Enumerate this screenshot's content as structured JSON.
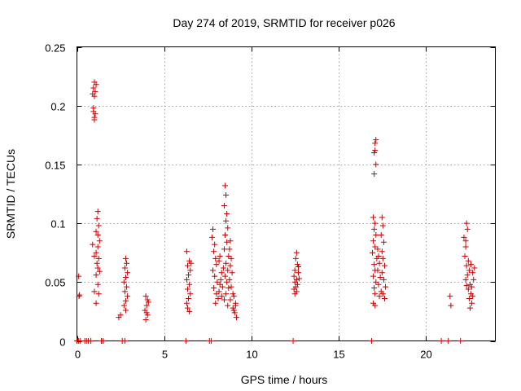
{
  "chart_data": {
    "type": "scatter",
    "title": "Day 274 of 2019, SRMTID for receiver p026",
    "xlabel": "GPS time / hours",
    "ylabel": "SRMTID / TECUs",
    "xlim": [
      0,
      24
    ],
    "ylim": [
      0,
      0.25
    ],
    "xticks": [
      0,
      5,
      10,
      15,
      20
    ],
    "xtick_labels": [
      "0",
      "5",
      "10",
      "15",
      "20"
    ],
    "yticks": [
      0,
      0.05,
      0.1,
      0.15,
      0.2,
      0.25
    ],
    "ytick_labels": [
      "0",
      "0.05",
      "0.1",
      "0.15",
      "0.2",
      "0.25"
    ],
    "grid": true,
    "marker": "+",
    "marker_color": "#cc0000",
    "series": [
      {
        "name": "SRMTID",
        "points": [
          [
            0.1,
            0.055
          ],
          [
            0.12,
            0.038
          ],
          [
            0.15,
            0.039
          ],
          [
            0.0,
            0.0
          ],
          [
            0.1,
            0.0
          ],
          [
            0.2,
            0.0
          ],
          [
            0.45,
            0.0
          ],
          [
            0.55,
            0.0
          ],
          [
            0.65,
            0.0
          ],
          [
            0.8,
            0.0
          ],
          [
            0.9,
            0.21
          ],
          [
            0.95,
            0.215
          ],
          [
            1.0,
            0.22
          ],
          [
            1.05,
            0.212
          ],
          [
            1.1,
            0.218
          ],
          [
            1.0,
            0.208
          ],
          [
            0.95,
            0.195
          ],
          [
            1.0,
            0.19
          ],
          [
            0.95,
            0.198
          ],
          [
            1.05,
            0.193
          ],
          [
            1.0,
            0.188
          ],
          [
            1.2,
            0.11
          ],
          [
            1.15,
            0.104
          ],
          [
            1.25,
            0.098
          ],
          [
            1.1,
            0.093
          ],
          [
            1.2,
            0.09
          ],
          [
            1.3,
            0.085
          ],
          [
            1.2,
            0.08
          ],
          [
            1.1,
            0.075
          ],
          [
            1.0,
            0.072
          ],
          [
            1.25,
            0.07
          ],
          [
            1.15,
            0.066
          ],
          [
            1.2,
            0.062
          ],
          [
            1.3,
            0.059
          ],
          [
            1.1,
            0.056
          ],
          [
            0.9,
            0.082
          ],
          [
            1.2,
            0.048
          ],
          [
            1.0,
            0.042
          ],
          [
            1.1,
            0.032
          ],
          [
            1.25,
            0.04
          ],
          [
            1.4,
            0.0
          ],
          [
            1.5,
            0.0
          ],
          [
            2.4,
            0.02
          ],
          [
            2.6,
            0.0
          ],
          [
            2.75,
            0.0
          ],
          [
            2.5,
            0.022
          ],
          [
            2.8,
            0.07
          ],
          [
            2.85,
            0.066
          ],
          [
            2.75,
            0.062
          ],
          [
            2.9,
            0.058
          ],
          [
            2.8,
            0.054
          ],
          [
            2.7,
            0.05
          ],
          [
            2.85,
            0.046
          ],
          [
            2.75,
            0.042
          ],
          [
            2.9,
            0.038
          ],
          [
            2.8,
            0.034
          ],
          [
            2.7,
            0.03
          ],
          [
            2.8,
            0.026
          ],
          [
            3.95,
            0.038
          ],
          [
            4.05,
            0.035
          ],
          [
            4.0,
            0.03
          ],
          [
            3.9,
            0.026
          ],
          [
            4.05,
            0.022
          ],
          [
            3.95,
            0.018
          ],
          [
            4.0,
            0.024
          ],
          [
            4.1,
            0.033
          ],
          [
            6.3,
            0.076
          ],
          [
            6.45,
            0.068
          ],
          [
            6.35,
            0.064
          ],
          [
            6.5,
            0.06
          ],
          [
            6.4,
            0.056
          ],
          [
            6.3,
            0.052
          ],
          [
            6.45,
            0.048
          ],
          [
            6.35,
            0.044
          ],
          [
            6.5,
            0.04
          ],
          [
            6.4,
            0.036
          ],
          [
            6.3,
            0.032
          ],
          [
            6.35,
            0.028
          ],
          [
            6.45,
            0.025
          ],
          [
            6.55,
            0.066
          ],
          [
            6.25,
            0.0
          ],
          [
            7.6,
            0.0
          ],
          [
            7.7,
            0.0
          ],
          [
            7.75,
            0.088
          ],
          [
            7.8,
            0.095
          ],
          [
            7.9,
            0.082
          ],
          [
            7.85,
            0.076
          ],
          [
            7.95,
            0.07
          ],
          [
            8.0,
            0.065
          ],
          [
            7.8,
            0.06
          ],
          [
            7.9,
            0.055
          ],
          [
            8.05,
            0.05
          ],
          [
            7.85,
            0.045
          ],
          [
            8.0,
            0.04
          ],
          [
            8.1,
            0.036
          ],
          [
            7.95,
            0.032
          ],
          [
            8.15,
            0.068
          ],
          [
            8.2,
            0.072
          ],
          [
            8.3,
            0.058
          ],
          [
            8.25,
            0.052
          ],
          [
            8.35,
            0.046
          ],
          [
            8.15,
            0.042
          ],
          [
            8.3,
            0.038
          ],
          [
            8.4,
            0.062
          ],
          [
            8.2,
            0.048
          ],
          [
            8.5,
            0.132
          ],
          [
            8.55,
            0.124
          ],
          [
            8.45,
            0.115
          ],
          [
            8.6,
            0.108
          ],
          [
            8.55,
            0.102
          ],
          [
            8.65,
            0.096
          ],
          [
            8.5,
            0.09
          ],
          [
            8.6,
            0.084
          ],
          [
            8.45,
            0.078
          ],
          [
            8.7,
            0.072
          ],
          [
            8.55,
            0.066
          ],
          [
            8.65,
            0.06
          ],
          [
            8.5,
            0.055
          ],
          [
            8.6,
            0.05
          ],
          [
            8.7,
            0.045
          ],
          [
            8.55,
            0.04
          ],
          [
            8.45,
            0.035
          ],
          [
            8.65,
            0.03
          ],
          [
            8.8,
            0.085
          ],
          [
            8.75,
            0.078
          ],
          [
            8.85,
            0.07
          ],
          [
            8.8,
            0.064
          ],
          [
            8.9,
            0.058
          ],
          [
            8.75,
            0.052
          ],
          [
            8.85,
            0.046
          ],
          [
            8.95,
            0.04
          ],
          [
            8.8,
            0.035
          ],
          [
            9.0,
            0.038
          ],
          [
            9.1,
            0.032
          ],
          [
            8.95,
            0.028
          ],
          [
            9.05,
            0.024
          ],
          [
            9.15,
            0.02
          ],
          [
            9.0,
            0.026
          ],
          [
            9.1,
            0.03
          ],
          [
            12.4,
            0.0
          ],
          [
            12.45,
            0.055
          ],
          [
            12.5,
            0.05
          ],
          [
            12.55,
            0.046
          ],
          [
            12.5,
            0.06
          ],
          [
            12.6,
            0.052
          ],
          [
            12.65,
            0.065
          ],
          [
            12.55,
            0.07
          ],
          [
            12.6,
            0.075
          ],
          [
            12.7,
            0.058
          ],
          [
            12.45,
            0.044
          ],
          [
            12.5,
            0.04
          ],
          [
            12.65,
            0.048
          ],
          [
            12.75,
            0.053
          ],
          [
            12.6,
            0.042
          ],
          [
            12.7,
            0.063
          ],
          [
            16.9,
            0.0
          ],
          [
            17.1,
            0.168
          ],
          [
            17.15,
            0.171
          ],
          [
            17.05,
            0.16
          ],
          [
            17.1,
            0.162
          ],
          [
            17.15,
            0.15
          ],
          [
            17.05,
            0.142
          ],
          [
            17.0,
            0.105
          ],
          [
            17.1,
            0.1
          ],
          [
            17.05,
            0.095
          ],
          [
            17.15,
            0.09
          ],
          [
            17.0,
            0.085
          ],
          [
            17.1,
            0.08
          ],
          [
            16.95,
            0.075
          ],
          [
            17.2,
            0.07
          ],
          [
            17.05,
            0.065
          ],
          [
            17.1,
            0.06
          ],
          [
            17.0,
            0.055
          ],
          [
            17.15,
            0.05
          ],
          [
            17.05,
            0.045
          ],
          [
            17.1,
            0.04
          ],
          [
            17.0,
            0.032
          ],
          [
            17.1,
            0.03
          ],
          [
            17.25,
            0.078
          ],
          [
            17.3,
            0.072
          ],
          [
            17.35,
            0.066
          ],
          [
            17.25,
            0.06
          ],
          [
            17.4,
            0.054
          ],
          [
            17.3,
            0.048
          ],
          [
            17.45,
            0.042
          ],
          [
            17.35,
            0.038
          ],
          [
            17.5,
            0.105
          ],
          [
            17.55,
            0.098
          ],
          [
            17.45,
            0.09
          ],
          [
            17.6,
            0.084
          ],
          [
            17.5,
            0.076
          ],
          [
            17.55,
            0.07
          ],
          [
            17.65,
            0.064
          ],
          [
            17.5,
            0.058
          ],
          [
            17.6,
            0.052
          ],
          [
            17.7,
            0.046
          ],
          [
            17.55,
            0.04
          ],
          [
            17.65,
            0.036
          ],
          [
            20.9,
            0.0
          ],
          [
            21.3,
            0.0
          ],
          [
            21.4,
            0.038
          ],
          [
            21.45,
            0.03
          ],
          [
            22.0,
            0.0
          ],
          [
            22.2,
            0.088
          ],
          [
            22.3,
            0.085
          ],
          [
            22.35,
            0.1
          ],
          [
            22.4,
            0.095
          ],
          [
            22.3,
            0.08
          ],
          [
            22.25,
            0.072
          ],
          [
            22.45,
            0.068
          ],
          [
            22.35,
            0.064
          ],
          [
            22.5,
            0.06
          ],
          [
            22.4,
            0.056
          ],
          [
            22.3,
            0.052
          ],
          [
            22.55,
            0.048
          ],
          [
            22.45,
            0.044
          ],
          [
            22.6,
            0.04
          ],
          [
            22.5,
            0.036
          ],
          [
            22.65,
            0.032
          ],
          [
            22.55,
            0.028
          ],
          [
            22.6,
            0.065
          ],
          [
            22.7,
            0.058
          ],
          [
            22.75,
            0.052
          ],
          [
            22.65,
            0.046
          ],
          [
            22.8,
            0.062
          ],
          [
            22.7,
            0.038
          ],
          [
            22.35,
            0.047
          ]
        ]
      }
    ]
  }
}
